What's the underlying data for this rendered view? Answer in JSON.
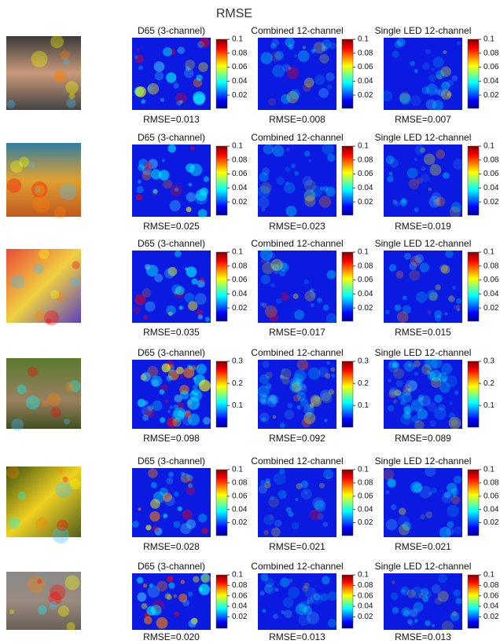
{
  "title": "RMSE",
  "rows": [
    {
      "panels": [
        {
          "title": "D65 (3-channel)",
          "rmse": "RMSE=0.013"
        },
        {
          "title": "Combined 12-channel",
          "rmse": "RMSE=0.008"
        },
        {
          "title": "Single LED 12-channel",
          "rmse": "RMSE=0.007"
        }
      ],
      "colorbar": {
        "clim": [
          0.01,
          0.1
        ],
        "ticks": [
          0.1,
          0.08,
          0.06,
          0.04,
          0.02
        ]
      }
    },
    {
      "panels": [
        {
          "title": "D65 (3-channel)",
          "rmse": "RMSE=0.025"
        },
        {
          "title": "Combined 12-channel",
          "rmse": "RMSE=0.023"
        },
        {
          "title": "Single LED 12-channel",
          "rmse": "RMSE=0.019"
        }
      ],
      "colorbar": {
        "clim": [
          0.01,
          0.1
        ],
        "ticks": [
          0.1,
          0.08,
          0.06,
          0.04,
          0.02
        ]
      }
    },
    {
      "panels": [
        {
          "title": "D65 (3-channel)",
          "rmse": "RMSE=0.035"
        },
        {
          "title": "Combined 12-channel",
          "rmse": "RMSE=0.017"
        },
        {
          "title": "Single LED 12-channel",
          "rmse": "RMSE=0.015"
        }
      ],
      "colorbar": {
        "clim": [
          0.01,
          0.1
        ],
        "ticks": [
          0.1,
          0.08,
          0.06,
          0.04,
          0.02
        ]
      }
    },
    {
      "panels": [
        {
          "title": "D65 (3-channel)",
          "rmse": "RMSE=0.098"
        },
        {
          "title": "Combined 12-channel",
          "rmse": "RMSE=0.092"
        },
        {
          "title": "Single LED 12-channel",
          "rmse": "RMSE=0.089"
        }
      ],
      "colorbar": {
        "clim": [
          0.03,
          0.3
        ],
        "ticks": [
          0.3,
          0.2,
          0.1
        ]
      }
    },
    {
      "panels": [
        {
          "title": "D65 (3-channel)",
          "rmse": "RMSE=0.028"
        },
        {
          "title": "Combined 12-channel",
          "rmse": "RMSE=0.021"
        },
        {
          "title": "Single LED 12-channel",
          "rmse": "RMSE=0.021"
        }
      ],
      "colorbar": {
        "clim": [
          0.01,
          0.1
        ],
        "ticks": [
          0.1,
          0.08,
          0.06,
          0.04,
          0.02
        ]
      }
    },
    {
      "panels": [
        {
          "title": "D65 (3-channel)",
          "rmse": "RMSE=0.020"
        },
        {
          "title": "Combined 12-channel",
          "rmse": "RMSE=0.013"
        },
        {
          "title": "Single LED 12-channel",
          "rmse": "RMSE=0.013"
        }
      ],
      "colorbar": {
        "clim": [
          0.01,
          0.1
        ],
        "ticks": [
          0.1,
          0.08,
          0.06,
          0.04,
          0.02
        ]
      }
    }
  ]
}
